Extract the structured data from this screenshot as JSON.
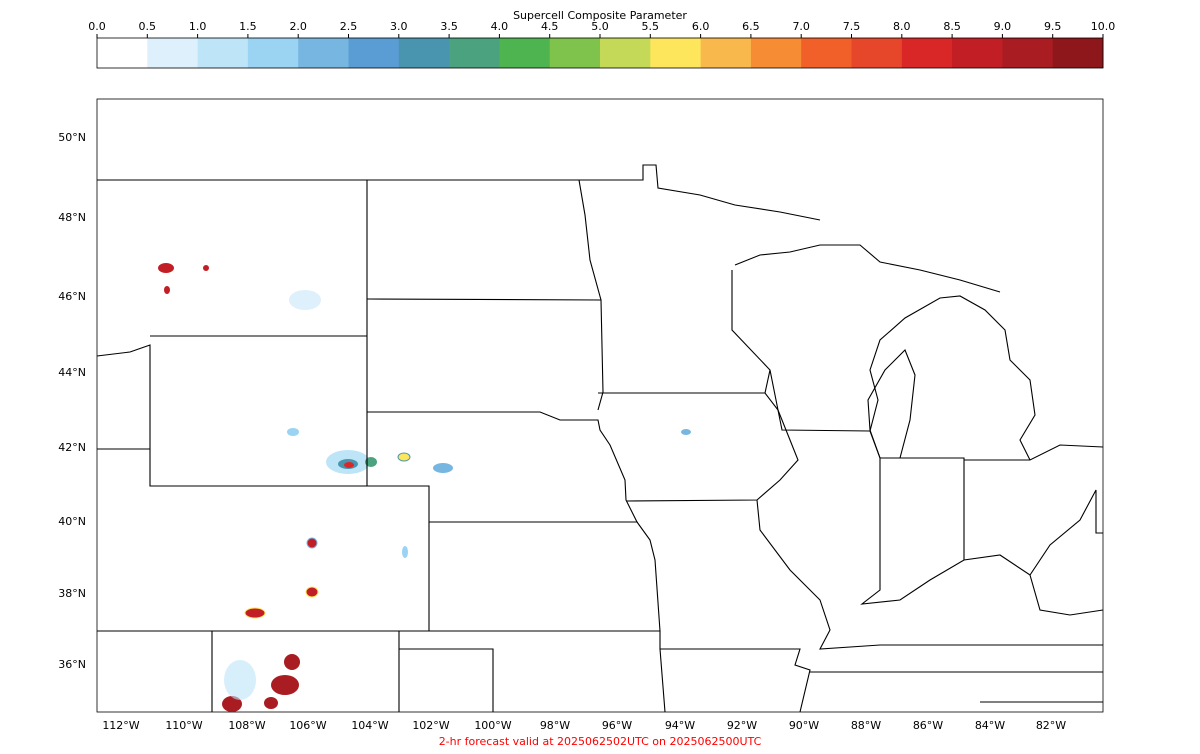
{
  "colorbar": {
    "title": "Supercell Composite Parameter",
    "ticks": [
      {
        "value": 0,
        "label": "0.0"
      },
      0.5,
      {
        "value": 1,
        "label": "1.0"
      },
      1.5,
      {
        "value": 2,
        "label": "2.0"
      },
      2.5,
      {
        "value": 3,
        "label": "3.0"
      },
      3.5,
      {
        "value": 4,
        "label": "4.0"
      },
      4.5,
      {
        "value": 5,
        "label": "5.0"
      },
      5.5,
      {
        "value": 6,
        "label": "6.0"
      },
      6.5,
      {
        "value": 7,
        "label": "7.0"
      },
      7.5,
      {
        "value": 8,
        "label": "8.0"
      },
      8.5,
      {
        "value": 9,
        "label": "9.0"
      },
      9.5,
      {
        "value": 10,
        "label": "10.0"
      }
    ],
    "colors": [
      "#ffffff",
      "#ddf0fb",
      "#bde4f7",
      "#9bd3f2",
      "#77b6e0",
      "#5a9dd4",
      "#4995b0",
      "#4aa37e",
      "#4db44f",
      "#7fc34c",
      "#c3d957",
      "#fde65c",
      "#f9b84c",
      "#f68c34",
      "#f26029",
      "#e6462a",
      "#d92728",
      "#c21e25",
      "#a81c22",
      "#8e171b"
    ]
  },
  "map": {
    "lat_labels": [
      "50°N",
      "48°N",
      "46°N",
      "44°N",
      "42°N",
      "40°N",
      "38°N",
      "36°N"
    ],
    "lon_labels": [
      "112°W",
      "110°W",
      "108°W",
      "106°W",
      "104°W",
      "102°W",
      "100°W",
      "98°W",
      "96°W",
      "94°W",
      "92°W",
      "90°W",
      "88°W",
      "86°W",
      "84°W",
      "82°W"
    ]
  },
  "footer": "2-hr forecast valid at 2025062502UTC on 2025062500UTC"
}
